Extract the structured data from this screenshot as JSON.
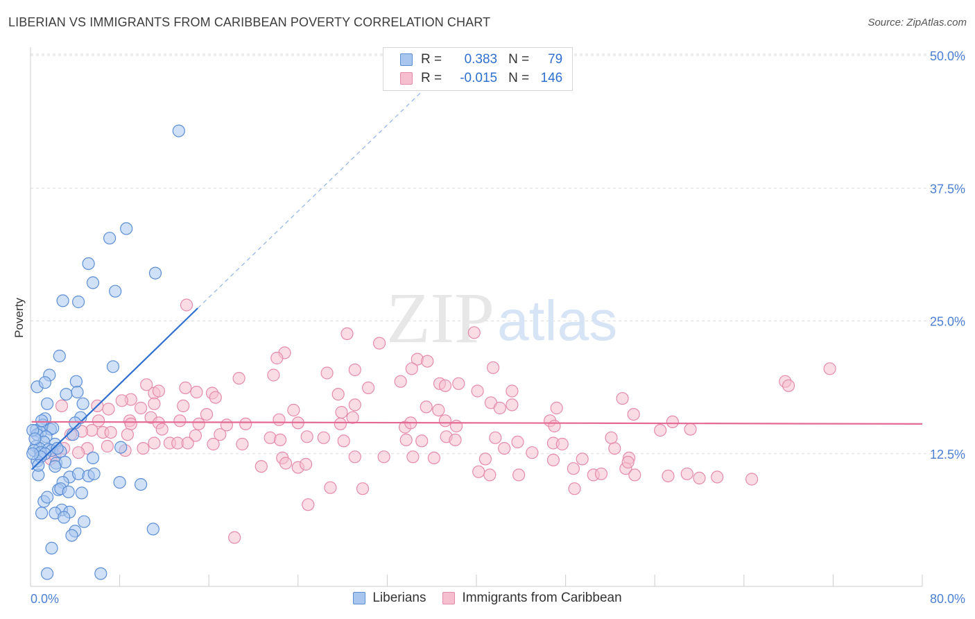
{
  "header": {
    "title": "LIBERIAN VS IMMIGRANTS FROM CARIBBEAN POVERTY CORRELATION CHART",
    "source": "Source: ZipAtlas.com"
  },
  "watermark": {
    "zip": "ZIP",
    "atlas": "atlas"
  },
  "legend_top": {
    "rows": [
      {
        "r_label": "R =",
        "r_value": "0.383",
        "n_label": "N =",
        "n_value": "79"
      },
      {
        "r_label": "R =",
        "r_value": "-0.015",
        "n_label": "N =",
        "n_value": "146"
      }
    ]
  },
  "legend_bottom": {
    "series1": "Liberians",
    "series2": "Immigrants from Caribbean"
  },
  "colors": {
    "blue_fill": "#a9c7ee",
    "blue_stroke": "#5b8ed6",
    "blue_line": "#2f6fd0",
    "pink_fill": "#f6bfd0",
    "pink_stroke": "#e58aab",
    "pink_line": "#e46a94",
    "grid": "#dddddd",
    "tick_text": "#4a7fd4"
  },
  "chart_data": {
    "type": "scatter",
    "title": "LIBERIAN VS IMMIGRANTS FROM CARIBBEAN POVERTY CORRELATION CHART",
    "xlabel": "",
    "ylabel": "Poverty",
    "xlim": [
      0,
      80
    ],
    "ylim": [
      0,
      50
    ],
    "x_tick_labels": [
      "0.0%",
      "80.0%"
    ],
    "y_ticks": [
      12.5,
      25.0,
      37.5,
      50.0
    ],
    "y_tick_labels": [
      "12.5%",
      "25.0%",
      "37.5%",
      "50.0%"
    ],
    "series": [
      {
        "name": "Liberians",
        "r": 0.383,
        "n": 79,
        "trend": {
          "x0": 0.1,
          "y0": 11.0,
          "x1": 15.0,
          "y1": 26.2,
          "dash_to_x": 35.0,
          "dash_to_y": 46.5
        },
        "points": [
          [
            13.3,
            42.9
          ],
          [
            8.6,
            33.7
          ],
          [
            7.1,
            32.8
          ],
          [
            5.2,
            30.4
          ],
          [
            11.2,
            29.5
          ],
          [
            5.6,
            28.6
          ],
          [
            7.6,
            27.8
          ],
          [
            2.9,
            26.9
          ],
          [
            4.3,
            26.8
          ],
          [
            7.4,
            20.7
          ],
          [
            2.6,
            21.7
          ],
          [
            1.7,
            19.9
          ],
          [
            4.1,
            19.3
          ],
          [
            0.6,
            18.8
          ],
          [
            1.3,
            19.2
          ],
          [
            3.2,
            18.1
          ],
          [
            4.2,
            18.3
          ],
          [
            1.5,
            17.2
          ],
          [
            4.7,
            17.2
          ],
          [
            4.5,
            15.9
          ],
          [
            4.0,
            15.4
          ],
          [
            1.3,
            15.8
          ],
          [
            1.1,
            15.2
          ],
          [
            1.8,
            14.8
          ],
          [
            2.0,
            14.9
          ],
          [
            0.5,
            14.7
          ],
          [
            0.9,
            14.5
          ],
          [
            0.6,
            14.3
          ],
          [
            1.4,
            14.1
          ],
          [
            0.2,
            14.7
          ],
          [
            1.2,
            13.6
          ],
          [
            2.2,
            13.4
          ],
          [
            0.5,
            13.2
          ],
          [
            0.8,
            13.0
          ],
          [
            1.6,
            12.9
          ],
          [
            1.9,
            12.8
          ],
          [
            0.3,
            12.8
          ],
          [
            0.9,
            12.6
          ],
          [
            1.3,
            12.5
          ],
          [
            2.7,
            12.7
          ],
          [
            8.1,
            13.1
          ],
          [
            0.6,
            11.8
          ],
          [
            2.3,
            11.6
          ],
          [
            3.1,
            11.7
          ],
          [
            5.6,
            12.1
          ],
          [
            2.2,
            11.3
          ],
          [
            0.7,
            10.5
          ],
          [
            3.5,
            10.3
          ],
          [
            4.3,
            10.6
          ],
          [
            5.2,
            10.4
          ],
          [
            5.7,
            10.6
          ],
          [
            2.9,
            9.8
          ],
          [
            8.0,
            9.8
          ],
          [
            9.9,
            9.6
          ],
          [
            2.5,
            9.1
          ],
          [
            2.7,
            9.2
          ],
          [
            3.4,
            8.9
          ],
          [
            4.6,
            8.8
          ],
          [
            1.2,
            8.0
          ],
          [
            1.5,
            8.4
          ],
          [
            2.8,
            7.2
          ],
          [
            3.5,
            7.0
          ],
          [
            2.2,
            6.9
          ],
          [
            1.0,
            6.9
          ],
          [
            3.0,
            6.5
          ],
          [
            4.8,
            6.1
          ],
          [
            4.0,
            5.2
          ],
          [
            3.7,
            4.8
          ],
          [
            11.0,
            5.4
          ],
          [
            1.9,
            3.6
          ],
          [
            1.5,
            1.2
          ],
          [
            6.3,
            1.2
          ],
          [
            0.4,
            13.9
          ],
          [
            0.9,
            12.2
          ],
          [
            1.0,
            15.6
          ],
          [
            3.8,
            14.3
          ],
          [
            2.4,
            13.0
          ],
          [
            0.2,
            12.5
          ],
          [
            0.7,
            11.4
          ]
        ]
      },
      {
        "name": "Immigrants from Caribbean",
        "r": -0.015,
        "n": 146,
        "trend": {
          "x0": 0.1,
          "y0": 15.5,
          "x1": 80.0,
          "y1": 15.3
        },
        "points": [
          [
            14.0,
            26.5
          ],
          [
            28.4,
            23.8
          ],
          [
            39.8,
            23.9
          ],
          [
            31.3,
            22.9
          ],
          [
            22.8,
            22.0
          ],
          [
            22.1,
            21.5
          ],
          [
            34.7,
            21.4
          ],
          [
            34.2,
            20.5
          ],
          [
            35.6,
            21.2
          ],
          [
            29.1,
            20.4
          ],
          [
            41.5,
            20.6
          ],
          [
            21.8,
            19.9
          ],
          [
            26.6,
            20.1
          ],
          [
            18.7,
            19.6
          ],
          [
            10.4,
            19.0
          ],
          [
            33.2,
            19.3
          ],
          [
            30.3,
            18.7
          ],
          [
            43.2,
            18.4
          ],
          [
            40.1,
            18.4
          ],
          [
            36.7,
            19.1
          ],
          [
            37.2,
            18.9
          ],
          [
            38.4,
            19.1
          ],
          [
            67.7,
            19.3
          ],
          [
            68.0,
            18.9
          ],
          [
            71.7,
            20.5
          ],
          [
            27.6,
            18.1
          ],
          [
            13.9,
            18.7
          ],
          [
            11.1,
            18.2
          ],
          [
            11.5,
            18.4
          ],
          [
            14.9,
            18.3
          ],
          [
            16.3,
            18.2
          ],
          [
            16.6,
            17.8
          ],
          [
            9.0,
            17.6
          ],
          [
            8.2,
            17.5
          ],
          [
            11.1,
            17.2
          ],
          [
            13.7,
            17.0
          ],
          [
            9.9,
            16.8
          ],
          [
            6.0,
            17.0
          ],
          [
            2.8,
            17.0
          ],
          [
            7.0,
            16.7
          ],
          [
            23.6,
            16.6
          ],
          [
            27.9,
            16.4
          ],
          [
            29.1,
            17.1
          ],
          [
            35.5,
            16.9
          ],
          [
            36.6,
            16.6
          ],
          [
            41.3,
            17.3
          ],
          [
            42.1,
            16.8
          ],
          [
            43.2,
            17.1
          ],
          [
            47.2,
            16.8
          ],
          [
            53.1,
            17.7
          ],
          [
            54.1,
            16.2
          ],
          [
            15.8,
            16.2
          ],
          [
            10.8,
            15.9
          ],
          [
            8.9,
            15.6
          ],
          [
            11.5,
            15.4
          ],
          [
            13.4,
            15.6
          ],
          [
            15.1,
            15.3
          ],
          [
            17.6,
            15.2
          ],
          [
            19.3,
            15.3
          ],
          [
            22.3,
            15.7
          ],
          [
            24.0,
            15.4
          ],
          [
            27.8,
            15.3
          ],
          [
            33.6,
            15.0
          ],
          [
            34.1,
            15.4
          ],
          [
            37.2,
            15.6
          ],
          [
            38.2,
            15.1
          ],
          [
            46.6,
            15.6
          ],
          [
            47.0,
            15.1
          ],
          [
            57.6,
            15.5
          ],
          [
            59.2,
            14.8
          ],
          [
            9.0,
            15.3
          ],
          [
            6.1,
            15.6
          ],
          [
            5.5,
            14.7
          ],
          [
            4.6,
            14.6
          ],
          [
            6.5,
            14.5
          ],
          [
            7.2,
            14.5
          ],
          [
            8.7,
            14.3
          ],
          [
            3.6,
            14.3
          ],
          [
            14.8,
            14.2
          ],
          [
            17.0,
            14.3
          ],
          [
            21.5,
            14.0
          ],
          [
            22.4,
            13.8
          ],
          [
            24.8,
            14.1
          ],
          [
            26.3,
            14.0
          ],
          [
            28.1,
            13.7
          ],
          [
            33.7,
            13.8
          ],
          [
            35.1,
            13.7
          ],
          [
            37.3,
            14.1
          ],
          [
            38.1,
            13.8
          ],
          [
            41.7,
            14.0
          ],
          [
            43.7,
            13.6
          ],
          [
            11.1,
            13.5
          ],
          [
            12.5,
            13.5
          ],
          [
            13.2,
            13.5
          ],
          [
            14.1,
            13.5
          ],
          [
            16.4,
            13.4
          ],
          [
            10.1,
            13.0
          ],
          [
            6.9,
            13.2
          ],
          [
            5.1,
            13.0
          ],
          [
            3.0,
            13.0
          ],
          [
            4.3,
            12.6
          ],
          [
            1.8,
            12.0
          ],
          [
            2.2,
            12.3
          ],
          [
            8.5,
            12.8
          ],
          [
            19.0,
            13.4
          ],
          [
            42.5,
            13.0
          ],
          [
            45.0,
            12.6
          ],
          [
            46.9,
            13.5
          ],
          [
            47.7,
            13.4
          ],
          [
            52.4,
            13.0
          ],
          [
            53.7,
            12.1
          ],
          [
            49.5,
            12.0
          ],
          [
            22.6,
            12.1
          ],
          [
            29.1,
            12.2
          ],
          [
            31.7,
            12.2
          ],
          [
            34.3,
            12.2
          ],
          [
            36.2,
            12.1
          ],
          [
            40.8,
            12.0
          ],
          [
            46.9,
            11.9
          ],
          [
            20.7,
            11.3
          ],
          [
            22.9,
            11.6
          ],
          [
            24.0,
            11.2
          ],
          [
            24.7,
            11.5
          ],
          [
            40.2,
            10.8
          ],
          [
            41.2,
            10.5
          ],
          [
            43.8,
            10.5
          ],
          [
            48.7,
            11.1
          ],
          [
            50.5,
            10.5
          ],
          [
            51.2,
            10.6
          ],
          [
            53.4,
            11.1
          ],
          [
            54.2,
            10.5
          ],
          [
            57.2,
            10.4
          ],
          [
            58.9,
            10.6
          ],
          [
            60.0,
            10.2
          ],
          [
            61.6,
            10.3
          ],
          [
            64.7,
            10.1
          ],
          [
            26.9,
            9.3
          ],
          [
            29.8,
            9.2
          ],
          [
            48.8,
            9.2
          ],
          [
            24.9,
            7.7
          ],
          [
            18.3,
            4.6
          ],
          [
            53.6,
            11.7
          ],
          [
            56.5,
            14.7
          ],
          [
            11.8,
            14.8
          ],
          [
            52.1,
            14.0
          ],
          [
            28.9,
            15.9
          ]
        ]
      }
    ]
  }
}
